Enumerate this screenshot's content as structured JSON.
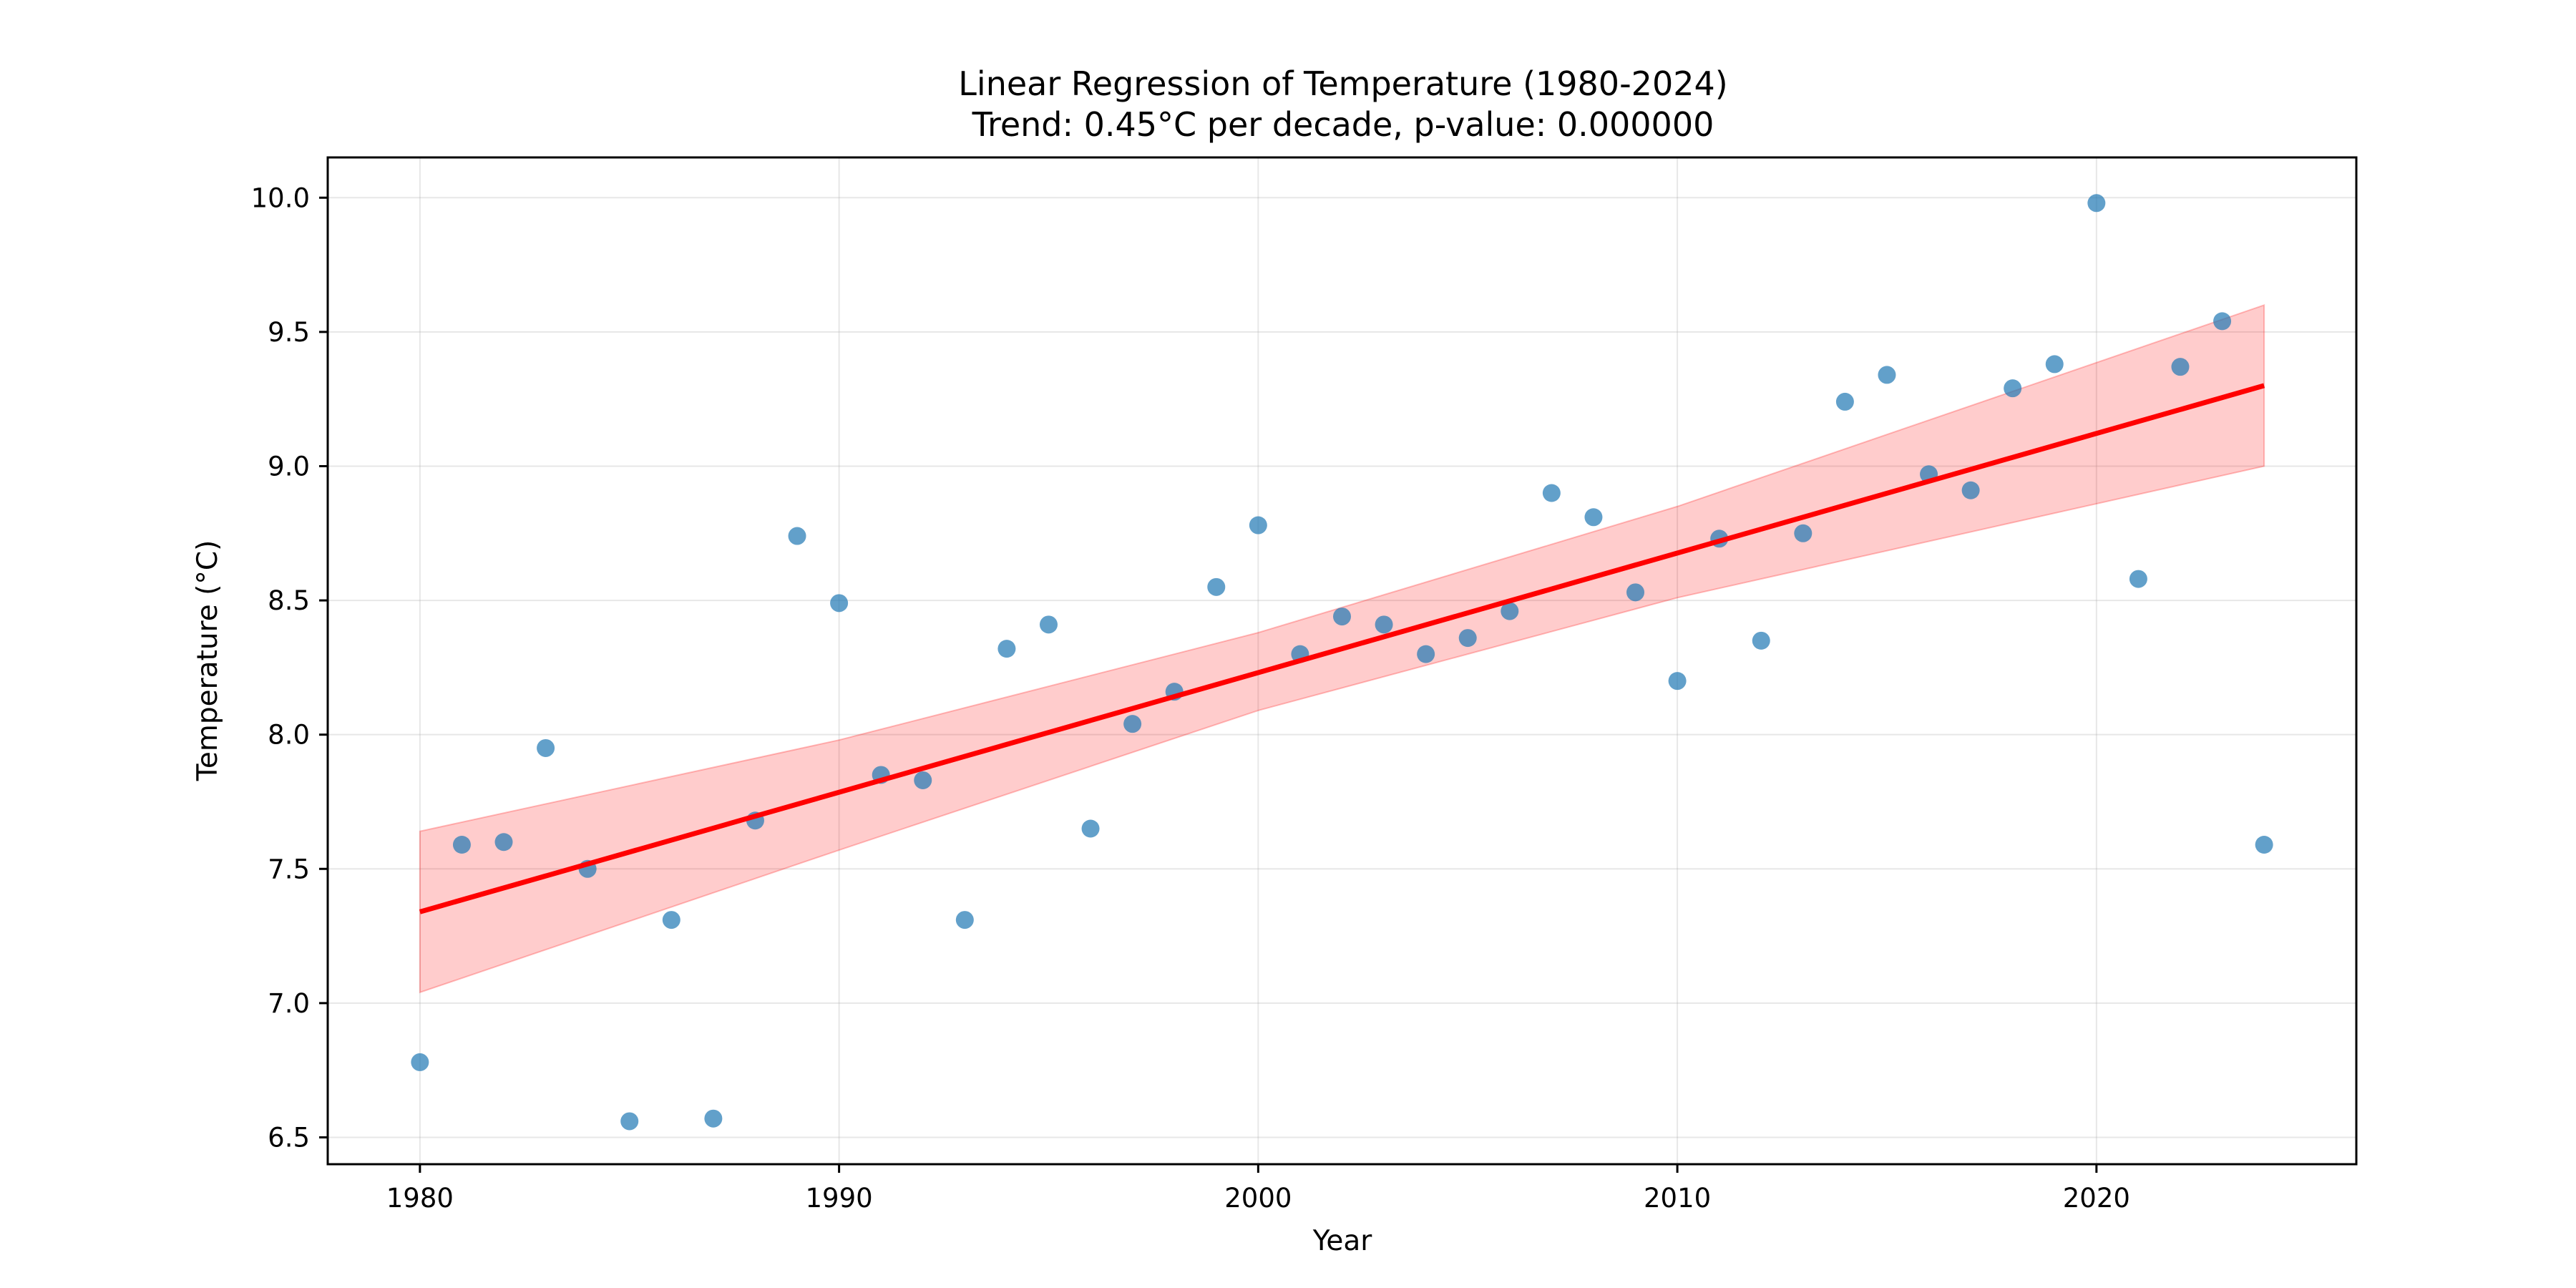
{
  "chart_data": {
    "type": "scatter",
    "title": "Linear Regression of Temperature (1980-2024)",
    "subtitle": "Trend: 0.45°C per decade, p-value: 0.000000",
    "xlabel": "Year",
    "ylabel": "Temperature (°C)",
    "xlim": [
      1977.8,
      2026.2
    ],
    "ylim": [
      6.4,
      10.15
    ],
    "x_ticks": [
      1980,
      1990,
      2000,
      2010,
      2020
    ],
    "y_ticks": [
      6.5,
      7.0,
      7.5,
      8.0,
      8.5,
      9.0,
      9.5,
      10.0
    ],
    "y_tick_labels": [
      "6.5",
      "7.0",
      "7.5",
      "8.0",
      "8.5",
      "9.0",
      "9.5",
      "10.0"
    ],
    "grid": true,
    "colors": {
      "points": "#1f77b4",
      "trend": "#ff0000",
      "band": "#ff0000"
    },
    "points": {
      "x": [
        1980,
        1981,
        1982,
        1983,
        1984,
        1985,
        1986,
        1987,
        1988,
        1989,
        1990,
        1991,
        1992,
        1993,
        1994,
        1995,
        1996,
        1997,
        1998,
        1999,
        2000,
        2001,
        2002,
        2003,
        2004,
        2005,
        2006,
        2007,
        2008,
        2009,
        2010,
        2011,
        2012,
        2013,
        2014,
        2015,
        2016,
        2017,
        2018,
        2019,
        2020,
        2021,
        2022,
        2023,
        2024
      ],
      "y": [
        6.78,
        7.59,
        7.6,
        7.95,
        7.5,
        6.56,
        7.31,
        6.57,
        7.68,
        8.74,
        8.49,
        7.85,
        7.83,
        7.31,
        8.32,
        8.41,
        7.65,
        8.04,
        8.16,
        8.55,
        8.78,
        8.3,
        8.44,
        8.41,
        8.3,
        8.36,
        8.46,
        8.9,
        8.81,
        8.53,
        8.2,
        8.73,
        8.35,
        8.75,
        9.24,
        9.34,
        8.97,
        8.91,
        9.29,
        9.38,
        9.98,
        8.58,
        9.37,
        9.54,
        7.59
      ]
    },
    "trend_line": {
      "x": [
        1980,
        2024
      ],
      "y": [
        7.34,
        9.3
      ]
    },
    "confidence_band": {
      "x": [
        1980,
        1990,
        2000,
        2010,
        2024
      ],
      "lower": [
        7.04,
        7.57,
        8.09,
        8.51,
        9.0
      ],
      "upper": [
        7.64,
        7.98,
        8.38,
        8.85,
        9.6
      ]
    }
  }
}
